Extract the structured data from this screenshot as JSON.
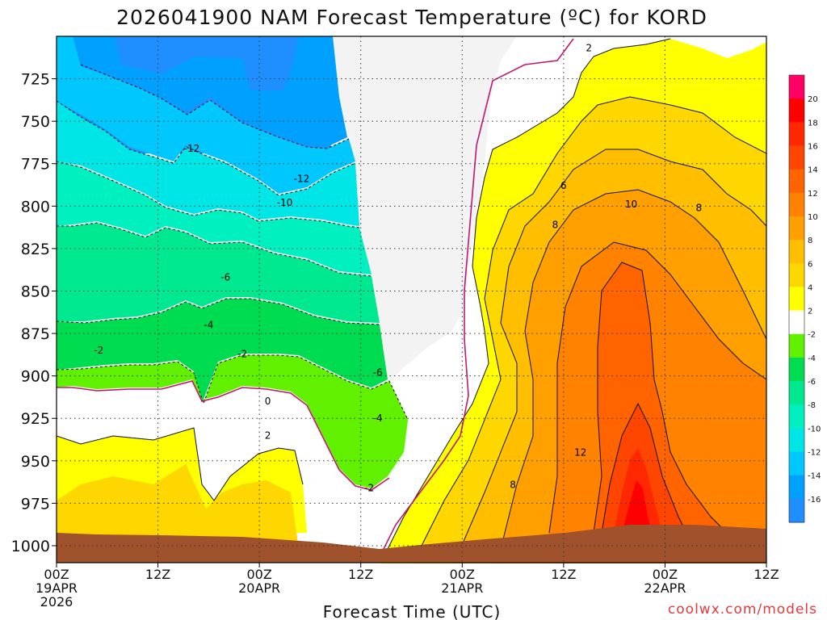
{
  "chart_data": {
    "type": "contour",
    "title": "2026041900 NAM Forecast Temperature (ºC) for KORD",
    "xlabel": "Forecast Time (UTC)",
    "ylabel": "",
    "credit": "coolwx.com/models",
    "y_axis": {
      "scale": "linear",
      "reversed": true,
      "range": [
        1010,
        700
      ],
      "ticks": [
        "725",
        "750",
        "775",
        "800",
        "825",
        "850",
        "875",
        "900",
        "925",
        "950",
        "975",
        "1000"
      ],
      "tick_values": [
        725,
        750,
        775,
        800,
        825,
        850,
        875,
        900,
        925,
        950,
        975,
        1000
      ]
    },
    "x_axis": {
      "range_hours": [
        0,
        84
      ],
      "ticks": [
        {
          "hours": 0,
          "lines": [
            "00Z",
            "19APR",
            "2026"
          ]
        },
        {
          "hours": 12,
          "lines": [
            "12Z"
          ]
        },
        {
          "hours": 24,
          "lines": [
            "00Z",
            "20APR"
          ]
        },
        {
          "hours": 36,
          "lines": [
            "12Z"
          ]
        },
        {
          "hours": 48,
          "lines": [
            "00Z",
            "21APR"
          ]
        },
        {
          "hours": 60,
          "lines": [
            "12Z"
          ]
        },
        {
          "hours": 72,
          "lines": [
            "00Z",
            "22APR"
          ]
        },
        {
          "hours": 84,
          "lines": [
            "12Z"
          ]
        }
      ]
    },
    "grid": true,
    "colorbar": {
      "placement": "right",
      "bands": [
        {
          "min": -18,
          "max": -16,
          "color": "#1f8fff"
        },
        {
          "min": -16,
          "max": -14,
          "color": "#00a0ff"
        },
        {
          "min": -14,
          "max": -12,
          "color": "#00c8ff"
        },
        {
          "min": -12,
          "max": -10,
          "color": "#00e6e6"
        },
        {
          "min": -10,
          "max": -8,
          "color": "#00f0c0"
        },
        {
          "min": -8,
          "max": -6,
          "color": "#00e890"
        },
        {
          "min": -6,
          "max": -4,
          "color": "#00dc50"
        },
        {
          "min": -4,
          "max": -2,
          "color": "#60f000"
        },
        {
          "min": -2,
          "max": 2,
          "color": "#ffffff"
        },
        {
          "min": 2,
          "max": 4,
          "color": "#ffff00"
        },
        {
          "min": 4,
          "max": 6,
          "color": "#ffd700"
        },
        {
          "min": 6,
          "max": 8,
          "color": "#ffbe00"
        },
        {
          "min": 8,
          "max": 10,
          "color": "#ffa000"
        },
        {
          "min": 10,
          "max": 12,
          "color": "#ff8200"
        },
        {
          "min": 12,
          "max": 14,
          "color": "#ff6400"
        },
        {
          "min": 14,
          "max": 16,
          "color": "#ff4600"
        },
        {
          "min": 16,
          "max": 18,
          "color": "#ff2800"
        },
        {
          "min": 18,
          "max": 20,
          "color": "#ff0000"
        },
        {
          "min": 20,
          "max": 22,
          "color": "#ff0064"
        }
      ],
      "tick_labels": [
        "-16",
        "-14",
        "-12",
        "-10",
        "-8",
        "-6",
        "-4",
        "-2",
        "2",
        "4",
        "6",
        "8",
        "10",
        "12",
        "14",
        "16",
        "18",
        "20"
      ]
    },
    "zero_contour_color": "#c0186e",
    "ground_color": "#a0522d",
    "contour_labels": [
      {
        "text": "-12",
        "hours": 16,
        "p": 766
      },
      {
        "text": "-12",
        "hours": 29,
        "p": 784
      },
      {
        "text": "-10",
        "hours": 27,
        "p": 798
      },
      {
        "text": "-6",
        "hours": 20,
        "p": 842
      },
      {
        "text": "-4",
        "hours": 18,
        "p": 870
      },
      {
        "text": "-2",
        "hours": 5,
        "p": 885
      },
      {
        "text": "-2",
        "hours": 22,
        "p": 887
      },
      {
        "text": "0",
        "hours": 25,
        "p": 915
      },
      {
        "text": "2",
        "hours": 25,
        "p": 935
      },
      {
        "text": "-6",
        "hours": 38,
        "p": 898
      },
      {
        "text": "-4",
        "hours": 38,
        "p": 925
      },
      {
        "text": "-2",
        "hours": 37,
        "p": 966
      },
      {
        "text": "2",
        "hours": 63,
        "p": 707
      },
      {
        "text": "6",
        "hours": 60,
        "p": 788
      },
      {
        "text": "8",
        "hours": 59,
        "p": 811
      },
      {
        "text": "10",
        "hours": 68,
        "p": 799
      },
      {
        "text": "8",
        "hours": 76,
        "p": 801
      },
      {
        "text": "12",
        "hours": 62,
        "p": 945
      },
      {
        "text": "8",
        "hours": 54,
        "p": 964
      }
    ]
  }
}
